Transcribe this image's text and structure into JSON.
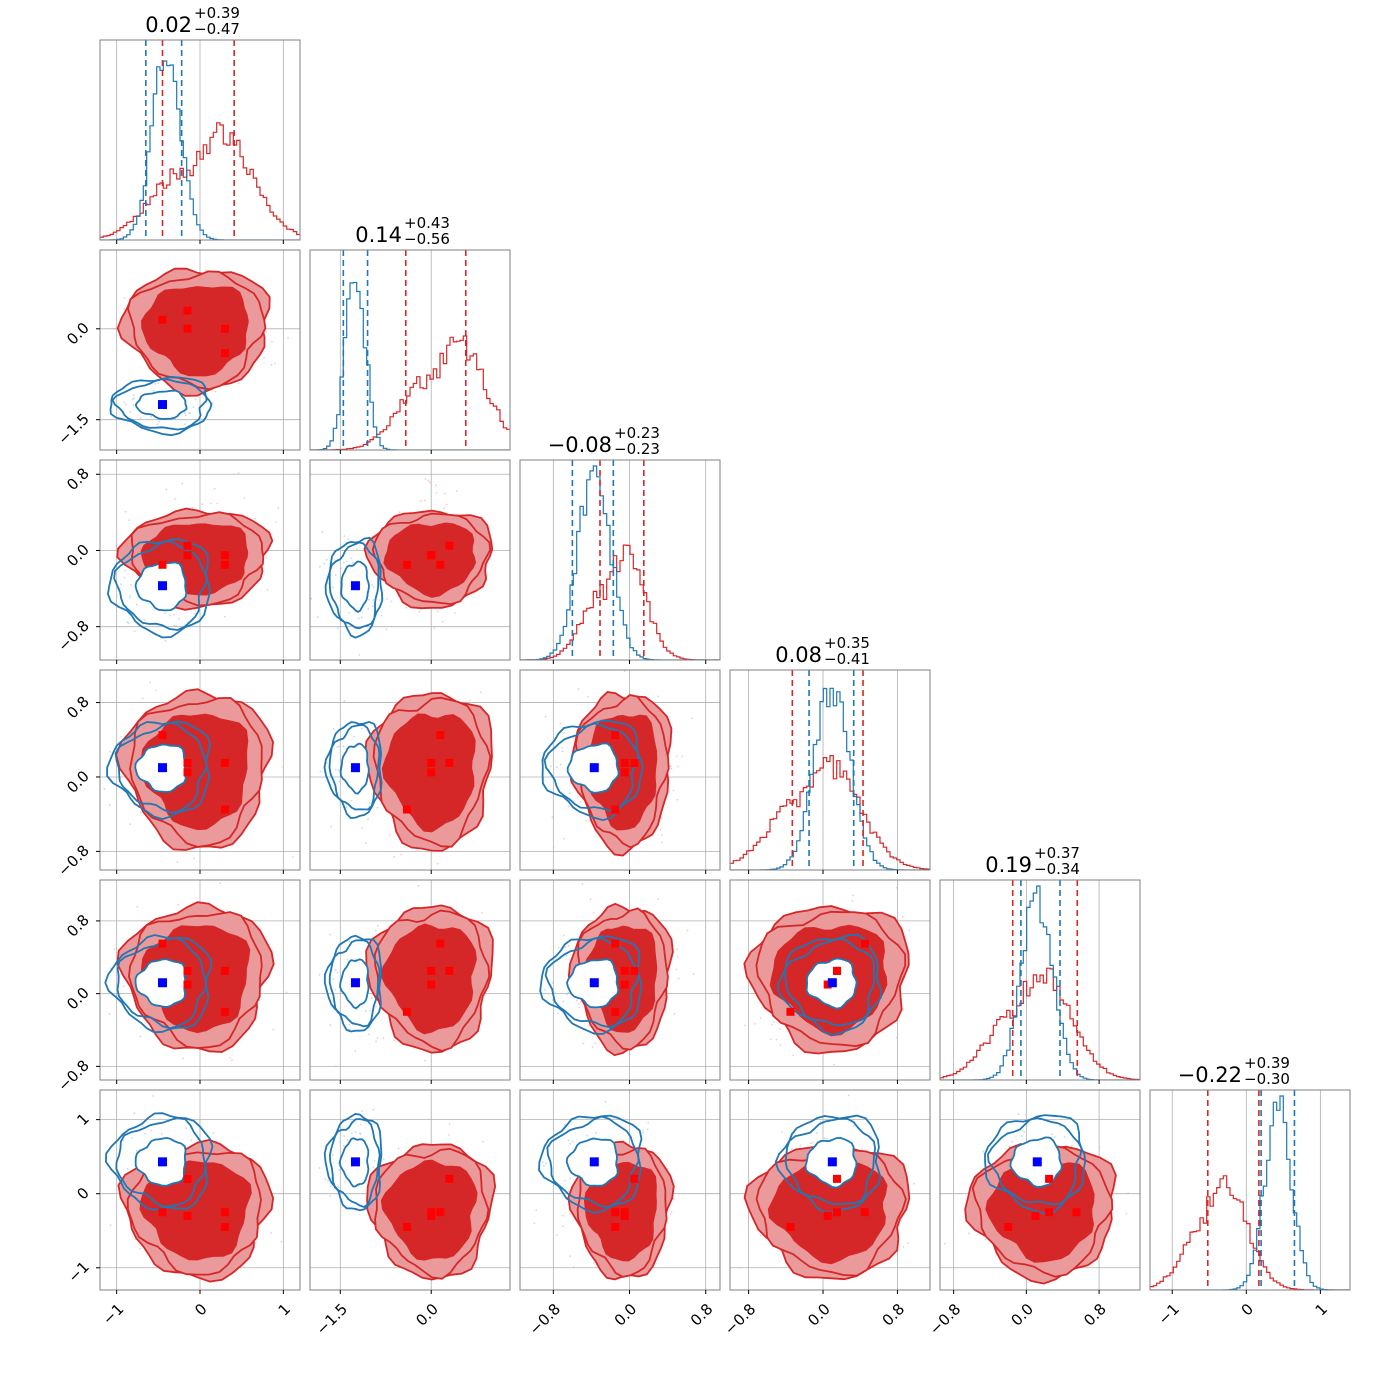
{
  "chart_data": {
    "type": "corner",
    "parameters": 6,
    "colors": {
      "red": "#d62728",
      "blue": "#1f77b4",
      "red_fill": "#eb9a9c",
      "marker_red": "#ff0000",
      "marker_blue": "#0000ff"
    },
    "titles": [
      {
        "value": "0.02",
        "plus": "+0.39",
        "minus": "−0.47"
      },
      {
        "value": "0.14",
        "plus": "+0.43",
        "minus": "−0.56"
      },
      {
        "value": "−0.08",
        "plus": "+0.23",
        "minus": "−0.23"
      },
      {
        "value": "0.08",
        "plus": "+0.35",
        "minus": "−0.41"
      },
      {
        "value": "0.19",
        "plus": "+0.37",
        "minus": "−0.34"
      },
      {
        "value": "−0.22",
        "plus": "+0.39",
        "minus": "−0.30"
      }
    ],
    "axes": [
      {
        "range": [
          -1.2,
          1.2
        ],
        "ticks": [
          -1,
          0,
          1
        ],
        "tick_labels": [
          "−1",
          "0",
          "1"
        ]
      },
      {
        "range": [
          -2.0,
          1.3
        ],
        "ticks": [
          -1.5,
          0.0
        ],
        "tick_labels": [
          "−1.5",
          "0.0"
        ]
      },
      {
        "range": [
          -1.15,
          0.95
        ],
        "ticks": [
          -0.8,
          0.0,
          0.8
        ],
        "tick_labels": [
          "−0.8",
          "0.0",
          "0.8"
        ]
      },
      {
        "range": [
          -1.0,
          1.15
        ],
        "ticks": [
          -0.8,
          0.0,
          0.8
        ],
        "tick_labels": [
          "−0.8",
          "0.0",
          "0.8"
        ]
      },
      {
        "range": [
          -0.95,
          1.25
        ],
        "ticks": [
          -0.8,
          0.0,
          0.8
        ],
        "tick_labels": [
          "−0.8",
          "0.0",
          "0.8"
        ]
      },
      {
        "range": [
          -1.3,
          1.4
        ],
        "ticks": [
          -1,
          0,
          1
        ],
        "tick_labels": [
          "−1",
          "0",
          "1"
        ]
      }
    ],
    "red_mode_points": [
      [
        -0.45,
        0.15,
        -0.15,
        0.45,
        0.55,
        -0.25
      ],
      [
        -0.15,
        0.3,
        0.05,
        0.15,
        0.25,
        0.2
      ],
      [
        0.3,
        0.0,
        -0.05,
        0.15,
        0.25,
        -0.25
      ],
      [
        0.3,
        -0.4,
        -0.15,
        -0.35,
        -0.2,
        -0.45
      ],
      [
        -0.15,
        0.0,
        -0.05,
        0.05,
        0.1,
        -0.3
      ]
    ],
    "blue_point": [
      -0.45,
      -1.25,
      -0.37,
      0.1,
      0.12,
      0.43
    ],
    "marginals_red": [
      {
        "quantiles": [
          -0.45,
          0.41
        ],
        "peak_x": 0.25
      },
      {
        "quantiles": [
          -0.42,
          0.57
        ],
        "peak_x": 0.45
      },
      {
        "quantiles": [
          -0.31,
          0.15
        ],
        "peak_x": -0.05
      },
      {
        "quantiles": [
          -0.33,
          0.43
        ],
        "peak_x": 0.05
      },
      {
        "quantiles": [
          -0.15,
          0.56
        ],
        "peak_x": 0.17
      },
      {
        "quantiles": [
          -0.52,
          0.17
        ],
        "peak_x": -0.3
      }
    ],
    "marginals_blue": [
      {
        "quantiles": [
          -0.65,
          -0.22
        ],
        "peak_x": -0.4
      },
      {
        "quantiles": [
          -1.45,
          -1.05
        ],
        "peak_x": -1.25
      },
      {
        "quantiles": [
          -0.6,
          -0.17
        ],
        "peak_x": -0.37
      },
      {
        "quantiles": [
          -0.15,
          0.33
        ],
        "peak_x": 0.1
      },
      {
        "quantiles": [
          -0.06,
          0.37
        ],
        "peak_x": 0.12
      },
      {
        "quantiles": [
          0.2,
          0.65
        ],
        "peak_x": 0.43
      }
    ]
  }
}
